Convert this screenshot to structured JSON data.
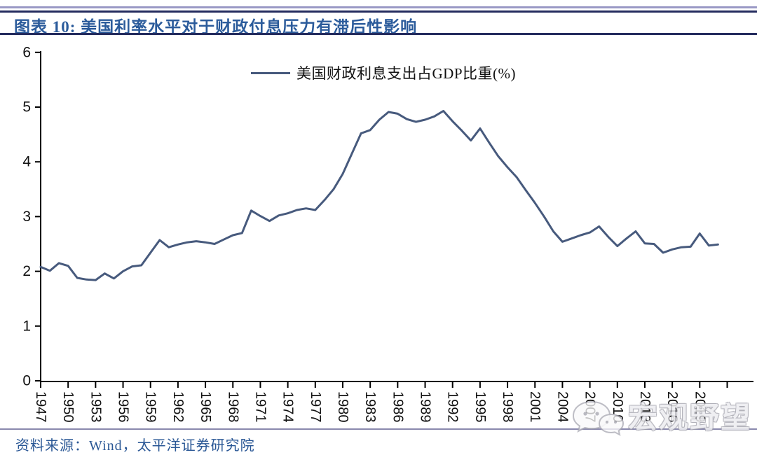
{
  "header": {
    "title": "图表 10:  美国利率水平对于财政付息压力有滞后性影响"
  },
  "legend": {
    "label": "美国财政利息支出占GDP比重(%)"
  },
  "footer": {
    "source": "资料来源：Wind，太平洋证券研究院"
  },
  "watermark": {
    "text": "宏观野望",
    "icon": "wechat-chat-bubbles-icon"
  },
  "chart_data": {
    "type": "line",
    "title": "",
    "xlabel": "",
    "ylabel": "",
    "ylim": [
      0,
      6
    ],
    "yticks": [
      0,
      1,
      2,
      3,
      4,
      5,
      6
    ],
    "xticks": [
      1947,
      1950,
      1953,
      1956,
      1959,
      1962,
      1965,
      1968,
      1971,
      1974,
      1977,
      1980,
      1983,
      1986,
      1989,
      1992,
      1995,
      1998,
      2001,
      2004,
      2007,
      2010,
      2013,
      2016,
      2019
    ],
    "grid": false,
    "legend_position": "top-center",
    "x_start": 1947,
    "x_step": 1,
    "series": [
      {
        "name": "美国财政利息支出占GDP比重(%)",
        "color": "#475a7d",
        "values": [
          2.08,
          2.01,
          2.15,
          2.1,
          1.88,
          1.85,
          1.84,
          1.96,
          1.87,
          2.0,
          2.09,
          2.11,
          2.34,
          2.57,
          2.44,
          2.49,
          2.53,
          2.55,
          2.53,
          2.5,
          2.58,
          2.66,
          2.7,
          3.11,
          3.01,
          2.92,
          3.02,
          3.06,
          3.12,
          3.15,
          3.12,
          3.3,
          3.5,
          3.78,
          4.15,
          4.52,
          4.58,
          4.77,
          4.91,
          4.88,
          4.78,
          4.73,
          4.77,
          4.83,
          4.93,
          4.74,
          4.57,
          4.39,
          4.61,
          4.35,
          4.1,
          3.9,
          3.72,
          3.48,
          3.25,
          3.0,
          2.73,
          2.54,
          2.6,
          2.66,
          2.71,
          2.82,
          2.63,
          2.46,
          2.6,
          2.73,
          2.51,
          2.5,
          2.34,
          2.4,
          2.44,
          2.45,
          2.69,
          2.47,
          2.49
        ]
      }
    ]
  }
}
